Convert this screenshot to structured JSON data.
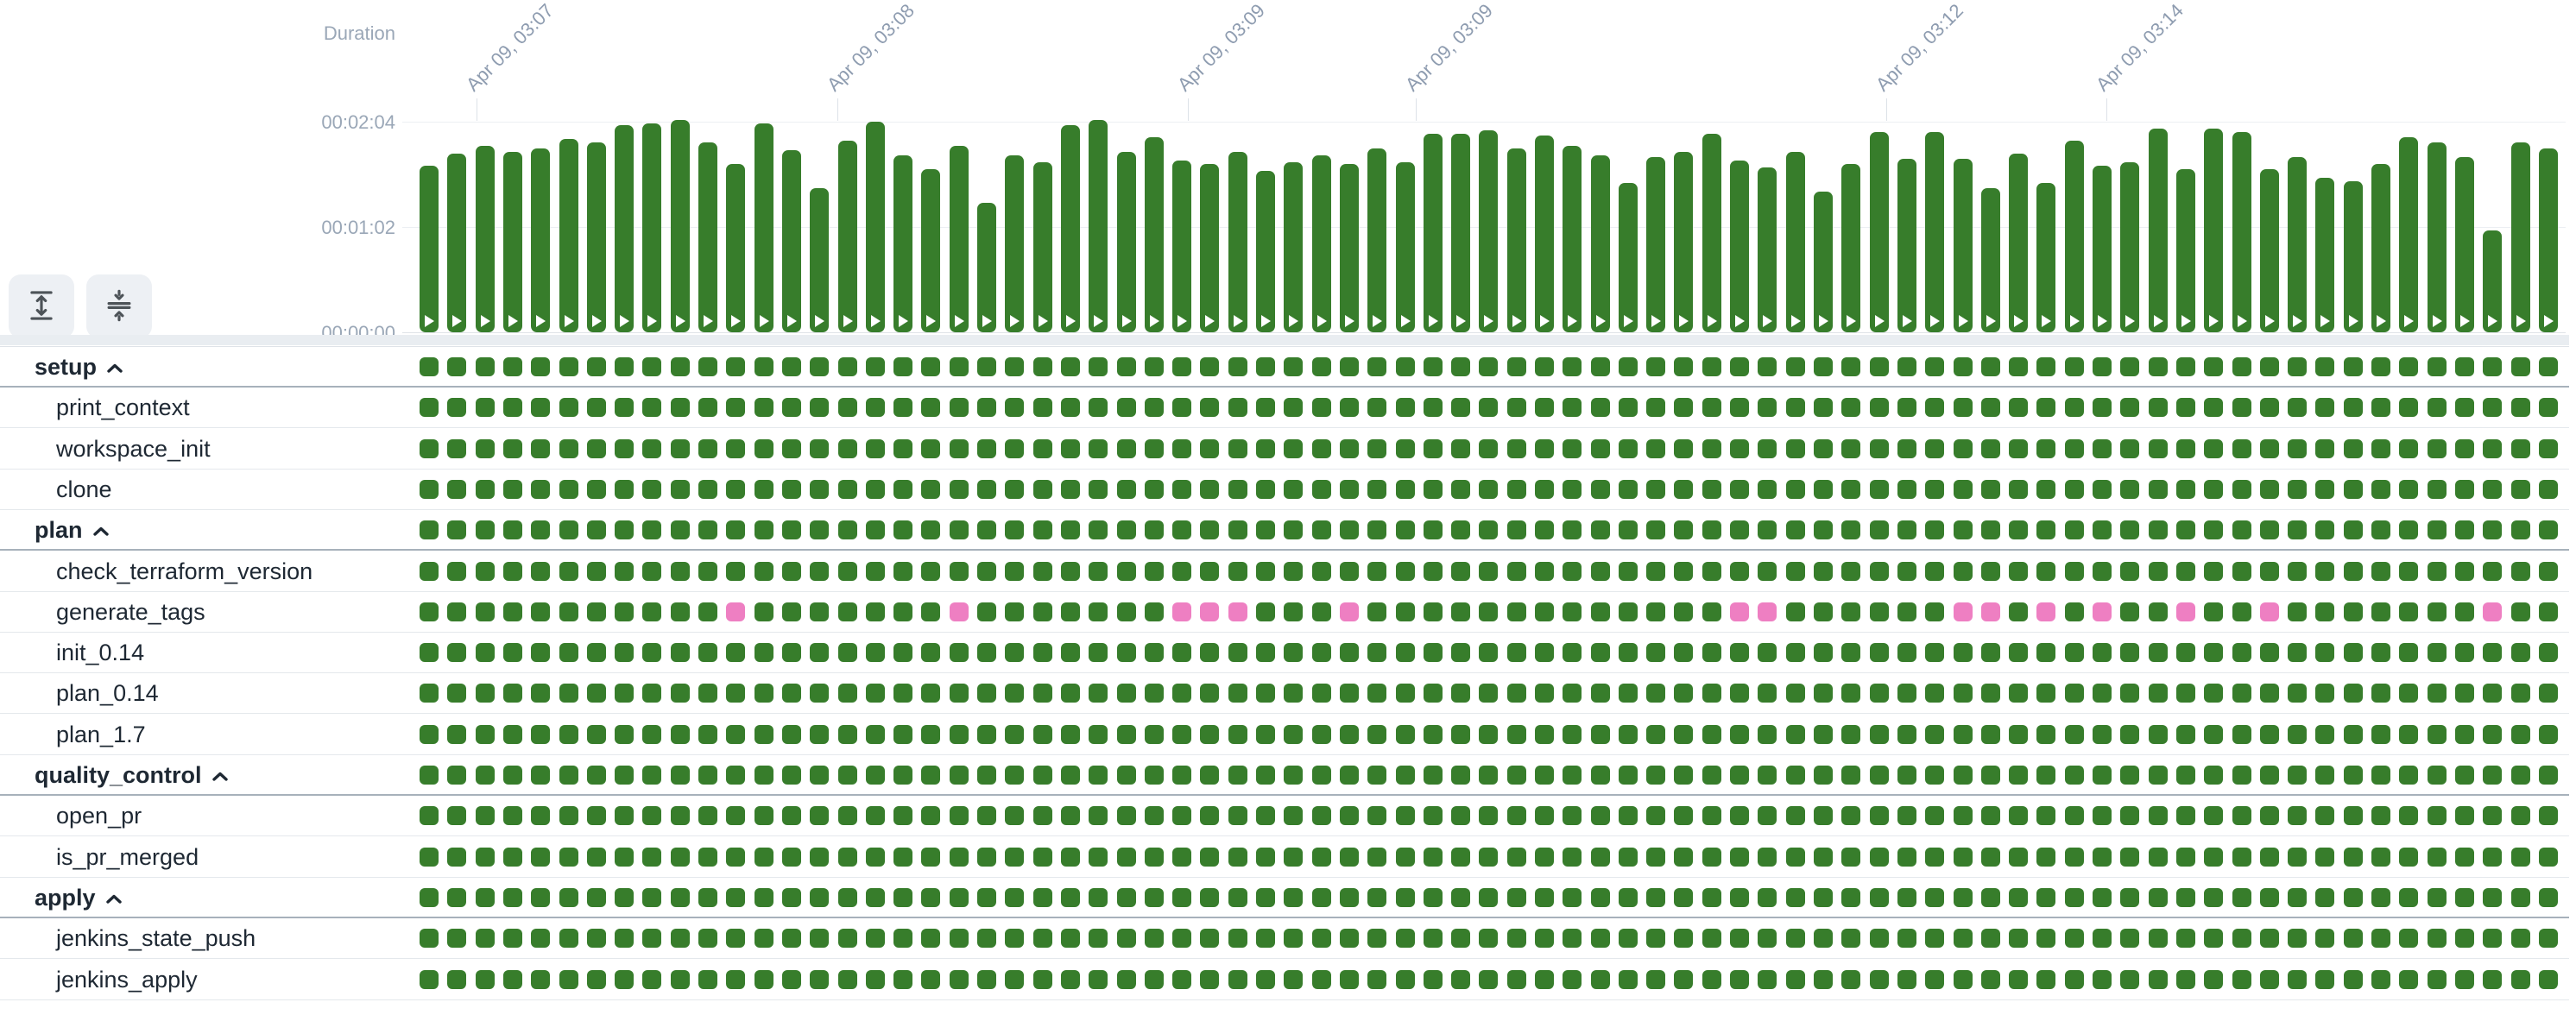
{
  "axis": {
    "ylabel": "Duration",
    "y_ticks": [
      {
        "label": "00:02:04",
        "seconds": 124
      },
      {
        "label": "00:01:02",
        "seconds": 62
      },
      {
        "label": "00:00:00",
        "seconds": 0
      }
    ]
  },
  "chart_data": {
    "type": "bar",
    "ylabel": "Duration",
    "y_tick_labels": [
      "00:02:04",
      "00:01:02",
      "00:00:00"
    ],
    "ylim_seconds": [
      0,
      124
    ],
    "grid": "horizontal",
    "x_ticks": [
      {
        "label": "Apr 09, 03:07",
        "x": 552
      },
      {
        "label": "Apr 09, 03:08",
        "x": 970
      },
      {
        "label": "Apr 09, 03:09",
        "x": 1376
      },
      {
        "label": "Apr 09, 03:09",
        "x": 1640
      },
      {
        "label": "Apr 09, 03:12",
        "x": 2185
      },
      {
        "label": "Apr 09, 03:14",
        "x": 2440
      }
    ],
    "durations_seconds": [
      98,
      105,
      110,
      106,
      108,
      114,
      112,
      122,
      123,
      125,
      112,
      99,
      123,
      107,
      85,
      113,
      124,
      104,
      96,
      110,
      76,
      104,
      100,
      122,
      125,
      106,
      115,
      101,
      99,
      106,
      95,
      100,
      104,
      99,
      108,
      100,
      117,
      117,
      119,
      108,
      116,
      110,
      104,
      88,
      103,
      106,
      117,
      101,
      97,
      106,
      83,
      99,
      118,
      102,
      118,
      102,
      85,
      105,
      88,
      113,
      98,
      100,
      120,
      96,
      120,
      118,
      96,
      103,
      91,
      89,
      99,
      115,
      112,
      103,
      60,
      112,
      108
    ],
    "bar_status_all": "passed"
  },
  "columns": 77,
  "toolbar": {
    "buttons": [
      {
        "name": "expand-rows",
        "icon": "unfold-vertical-icon"
      },
      {
        "name": "collapse-rows",
        "icon": "fold-vertical-icon"
      }
    ]
  },
  "colors": {
    "passed_green": "#377D2B",
    "failed_pink": "#EE7FC2",
    "axis_text": "#9AA7B7",
    "x_label_text": "#8E9CB0",
    "row_text": "#1E2833",
    "button_bg": "#EDF0F4",
    "icon_gray": "#4D5358"
  },
  "stages": [
    {
      "label": "setup",
      "group": true,
      "failed_columns": []
    },
    {
      "label": "print_context",
      "group": false,
      "failed_columns": []
    },
    {
      "label": "workspace_init",
      "group": false,
      "failed_columns": []
    },
    {
      "label": "clone",
      "group": false,
      "failed_columns": []
    },
    {
      "label": "plan",
      "group": true,
      "failed_columns": []
    },
    {
      "label": "check_terraform_version",
      "group": false,
      "failed_columns": []
    },
    {
      "label": "generate_tags",
      "group": false,
      "failed_columns": [
        11,
        19,
        27,
        28,
        29,
        33,
        47,
        48,
        55,
        56,
        58,
        60,
        63,
        66,
        74
      ]
    },
    {
      "label": "init_0.14",
      "group": false,
      "failed_columns": []
    },
    {
      "label": "plan_0.14",
      "group": false,
      "failed_columns": []
    },
    {
      "label": "plan_1.7",
      "group": false,
      "failed_columns": []
    },
    {
      "label": "quality_control",
      "group": true,
      "failed_columns": []
    },
    {
      "label": "open_pr",
      "group": false,
      "failed_columns": []
    },
    {
      "label": "is_pr_merged",
      "group": false,
      "failed_columns": []
    },
    {
      "label": "apply",
      "group": true,
      "failed_columns": []
    },
    {
      "label": "jenkins_state_push",
      "group": false,
      "failed_columns": []
    },
    {
      "label": "jenkins_apply",
      "group": false,
      "failed_columns": []
    }
  ]
}
